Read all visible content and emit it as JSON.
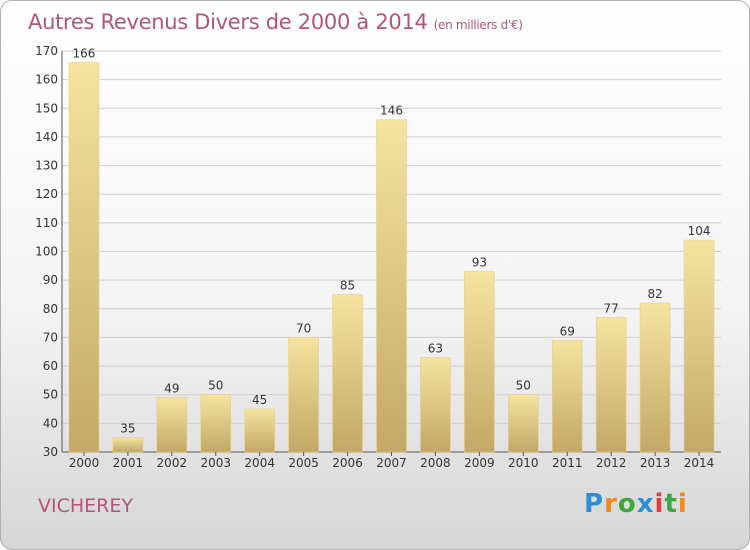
{
  "header": {
    "title": "Autres Revenus Divers de 2000 à 2014",
    "unit": "(en milliers d'€)"
  },
  "commune": "VICHEREY",
  "logo": {
    "letters": [
      "P",
      "r",
      "o",
      "x",
      "i",
      "t",
      "i"
    ]
  },
  "colors": {
    "title": "#b5547a",
    "bar_light": "#f6e3a0",
    "bar_dark": "#c2a965",
    "grid": "#cfcfcf"
  },
  "chart_data": {
    "type": "bar",
    "title": "Autres Revenus Divers de 2000 à 2014",
    "xlabel": "",
    "ylabel": "",
    "categories": [
      "2000",
      "2001",
      "2002",
      "2003",
      "2004",
      "2005",
      "2006",
      "2007",
      "2008",
      "2009",
      "2010",
      "2011",
      "2012",
      "2013",
      "2014"
    ],
    "values": [
      166,
      35,
      49,
      50,
      45,
      70,
      85,
      146,
      63,
      93,
      50,
      69,
      77,
      82,
      104
    ],
    "ylim": [
      30,
      170
    ],
    "yticks": [
      30,
      40,
      50,
      60,
      70,
      80,
      90,
      100,
      110,
      120,
      130,
      140,
      150,
      160,
      170
    ],
    "grid": true,
    "legend": "none"
  }
}
